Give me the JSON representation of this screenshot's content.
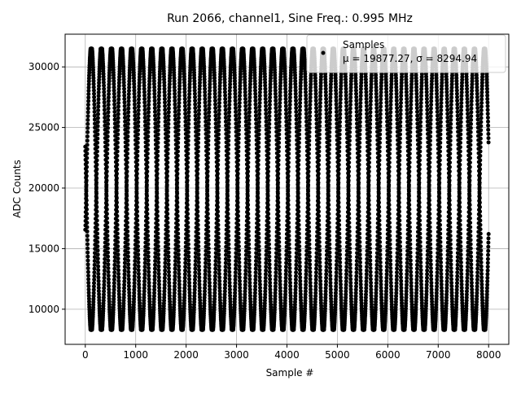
{
  "chart_data": {
    "type": "scatter",
    "title": "Run 2066, channel1, Sine Freq.: 0.995 MHz",
    "xlabel": "Sample #",
    "ylabel": "ADC Counts",
    "xlim": [
      -400,
      8400
    ],
    "ylim": [
      7100,
      32700
    ],
    "xticks": [
      0,
      1000,
      2000,
      3000,
      4000,
      5000,
      6000,
      7000,
      8000
    ],
    "yticks": [
      10000,
      15000,
      20000,
      25000,
      30000
    ],
    "grid": true,
    "legend_placement": "top-right",
    "series": [
      {
        "name": "Samples",
        "color": "#000000",
        "marker": "circle",
        "n_samples": 8000,
        "min": 8300,
        "max": 31500,
        "sine_approx": {
          "offset": 19900,
          "amplitude": 11900,
          "cycles_per_sample": 0.4975
        }
      }
    ],
    "legend_stats": "μ = 19877.27, σ = 8294.94"
  }
}
